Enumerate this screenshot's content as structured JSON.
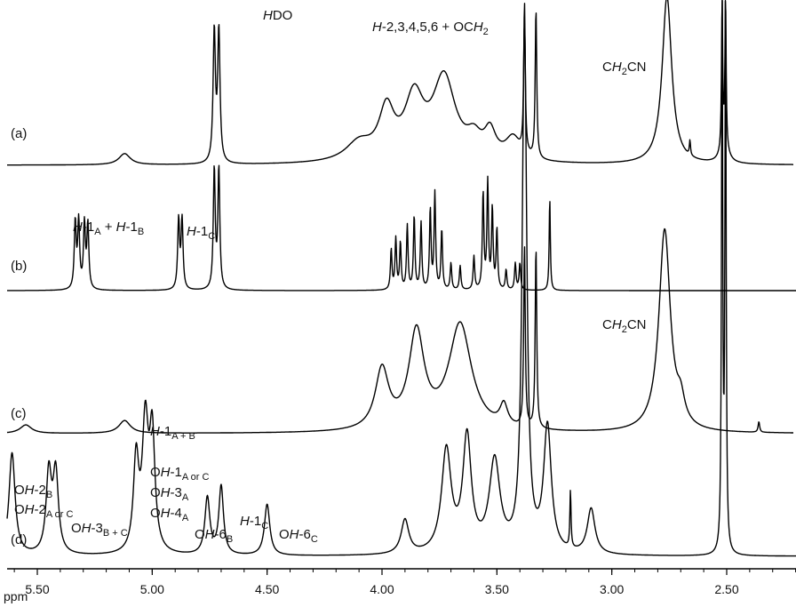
{
  "chart_data": {
    "type": "line",
    "title": "",
    "xlabel": "ppm",
    "ylabel": "",
    "xlim": [
      5.7,
      2.2
    ],
    "x_ticks": [
      "5.50",
      "5.00",
      "4.50",
      "4.00",
      "3.50",
      "3.00",
      "2.50"
    ],
    "x_tick_values": [
      5.5,
      5.0,
      4.5,
      4.0,
      3.5,
      3.0,
      2.5
    ],
    "grid": false,
    "legend": "none",
    "series": [
      {
        "name": "(a)",
        "peaks": [
          {
            "x": 5.12,
            "h": 0.06,
            "w": 0.03
          },
          {
            "x": 4.73,
            "h": 0.7,
            "w": 0.006
          },
          {
            "x": 4.71,
            "h": 0.7,
            "w": 0.006
          },
          {
            "x": 4.1,
            "h": 0.1,
            "w": 0.07
          },
          {
            "x": 3.98,
            "h": 0.26,
            "w": 0.04
          },
          {
            "x": 3.86,
            "h": 0.32,
            "w": 0.05
          },
          {
            "x": 3.73,
            "h": 0.44,
            "w": 0.06
          },
          {
            "x": 3.6,
            "h": 0.1,
            "w": 0.04
          },
          {
            "x": 3.53,
            "h": 0.14,
            "w": 0.03
          },
          {
            "x": 3.43,
            "h": 0.12,
            "w": 0.04
          },
          {
            "x": 3.38,
            "h": 0.8,
            "w": 0.004
          },
          {
            "x": 3.33,
            "h": 0.8,
            "w": 0.004
          },
          {
            "x": 2.76,
            "h": 0.9,
            "w": 0.025
          },
          {
            "x": 2.66,
            "h": 0.08,
            "w": 0.003
          },
          {
            "x": 2.51,
            "h": 0.09,
            "w": 0.02
          },
          {
            "x": 2.52,
            "h": 0.8,
            "w": 0.003
          },
          {
            "x": 2.505,
            "h": 0.8,
            "w": 0.003
          }
        ]
      },
      {
        "name": "(b)",
        "peaks": [
          {
            "x": 5.335,
            "h": 0.5,
            "w": 0.005
          },
          {
            "x": 5.32,
            "h": 0.5,
            "w": 0.005
          },
          {
            "x": 5.295,
            "h": 0.48,
            "w": 0.005
          },
          {
            "x": 5.28,
            "h": 0.48,
            "w": 0.005
          },
          {
            "x": 4.885,
            "h": 0.52,
            "w": 0.005
          },
          {
            "x": 4.87,
            "h": 0.52,
            "w": 0.005
          },
          {
            "x": 4.73,
            "h": 0.9,
            "w": 0.005
          },
          {
            "x": 4.71,
            "h": 0.9,
            "w": 0.005
          },
          {
            "x": 3.96,
            "h": 0.3,
            "w": 0.004
          },
          {
            "x": 3.94,
            "h": 0.38,
            "w": 0.004
          },
          {
            "x": 3.92,
            "h": 0.35,
            "w": 0.004
          },
          {
            "x": 3.89,
            "h": 0.48,
            "w": 0.004
          },
          {
            "x": 3.86,
            "h": 0.55,
            "w": 0.004
          },
          {
            "x": 3.83,
            "h": 0.5,
            "w": 0.004
          },
          {
            "x": 3.79,
            "h": 0.6,
            "w": 0.004
          },
          {
            "x": 3.77,
            "h": 0.72,
            "w": 0.004
          },
          {
            "x": 3.74,
            "h": 0.45,
            "w": 0.004
          },
          {
            "x": 3.7,
            "h": 0.2,
            "w": 0.004
          },
          {
            "x": 3.66,
            "h": 0.18,
            "w": 0.004
          },
          {
            "x": 3.6,
            "h": 0.25,
            "w": 0.004
          },
          {
            "x": 3.56,
            "h": 0.72,
            "w": 0.004
          },
          {
            "x": 3.54,
            "h": 0.8,
            "w": 0.004
          },
          {
            "x": 3.52,
            "h": 0.6,
            "w": 0.004
          },
          {
            "x": 3.5,
            "h": 0.45,
            "w": 0.004
          },
          {
            "x": 3.46,
            "h": 0.15,
            "w": 0.004
          },
          {
            "x": 3.42,
            "h": 0.2,
            "w": 0.004
          },
          {
            "x": 3.4,
            "h": 0.2,
            "w": 0.004
          },
          {
            "x": 3.27,
            "h": 0.7,
            "w": 0.003
          }
        ]
      },
      {
        "name": "(c)",
        "peaks": [
          {
            "x": 5.55,
            "h": 0.04,
            "w": 0.03
          },
          {
            "x": 5.12,
            "h": 0.06,
            "w": 0.03
          },
          {
            "x": 4.0,
            "h": 0.28,
            "w": 0.035
          },
          {
            "x": 3.85,
            "h": 0.45,
            "w": 0.04
          },
          {
            "x": 3.66,
            "h": 0.5,
            "w": 0.06
          },
          {
            "x": 3.47,
            "h": 0.1,
            "w": 0.02
          },
          {
            "x": 3.38,
            "h": 0.85,
            "w": 0.004
          },
          {
            "x": 3.33,
            "h": 0.85,
            "w": 0.004
          },
          {
            "x": 2.77,
            "h": 0.95,
            "w": 0.03
          },
          {
            "x": 2.7,
            "h": 0.1,
            "w": 0.02
          },
          {
            "x": 2.36,
            "h": 0.05,
            "w": 0.004
          }
        ]
      },
      {
        "name": "(d)",
        "peaks": [
          {
            "x": 5.61,
            "h": 0.18,
            "w": 0.016
          },
          {
            "x": 5.45,
            "h": 0.14,
            "w": 0.014
          },
          {
            "x": 5.42,
            "h": 0.14,
            "w": 0.014
          },
          {
            "x": 5.07,
            "h": 0.16,
            "w": 0.014
          },
          {
            "x": 5.03,
            "h": 0.22,
            "w": 0.016
          },
          {
            "x": 5.0,
            "h": 0.2,
            "w": 0.014
          },
          {
            "x": 4.76,
            "h": 0.1,
            "w": 0.013
          },
          {
            "x": 4.7,
            "h": 0.12,
            "w": 0.012
          },
          {
            "x": 4.5,
            "h": 0.09,
            "w": 0.014
          },
          {
            "x": 3.9,
            "h": 0.06,
            "w": 0.02
          },
          {
            "x": 3.72,
            "h": 0.18,
            "w": 0.025
          },
          {
            "x": 3.63,
            "h": 0.2,
            "w": 0.022
          },
          {
            "x": 3.51,
            "h": 0.16,
            "w": 0.028
          },
          {
            "x": 3.38,
            "h": 0.92,
            "w": 0.012
          },
          {
            "x": 3.28,
            "h": 0.22,
            "w": 0.02
          },
          {
            "x": 3.18,
            "h": 0.1,
            "w": 0.003
          },
          {
            "x": 3.09,
            "h": 0.08,
            "w": 0.02
          },
          {
            "x": 2.52,
            "h": 1.0,
            "w": 0.003
          },
          {
            "x": 2.505,
            "h": 1.0,
            "w": 0.003
          }
        ]
      }
    ],
    "annotations": {
      "a_hdo": {
        "italic": "H",
        "plain": "DO"
      },
      "a_hgroup": {
        "italic": "H",
        "plain": "-2,3,4,5,6 + OC",
        "italic2": "H",
        "sub": "2"
      },
      "a_ch2cn": {
        "pre": "C",
        "italic": "H",
        "sub": "2",
        "post": "CN"
      },
      "b_h1ab": {
        "italic": "H",
        "plain": "-1",
        "sub": "A",
        "plus": " + ",
        "italic2": "H",
        "plain2": "-1",
        "sub2": "B"
      },
      "b_h1c": {
        "italic": "H",
        "plain": "-1",
        "sub": "C"
      },
      "c_ch2cn": {
        "pre": "C",
        "italic": "H",
        "sub": "2",
        "post": "CN"
      },
      "d_oh2b": {
        "pre": "O",
        "italic": "H",
        "plain": "-2",
        "sub": "B"
      },
      "d_oh2ac": {
        "pre": "O",
        "italic": "H",
        "plain": "-2",
        "sub": "A or C"
      },
      "d_oh3bc": {
        "pre": "O",
        "italic": "H",
        "plain": "-3",
        "sub": "B + C"
      },
      "d_h1ab": {
        "italic": "H",
        "plain": "-1",
        "sub": "A + B"
      },
      "d_oh1ac": {
        "pre": "O",
        "italic": "H",
        "plain": "-1",
        "sub": "A or C"
      },
      "d_oh3a": {
        "pre": "O",
        "italic": "H",
        "plain": "-3",
        "sub": "A"
      },
      "d_oh4a": {
        "pre": "O",
        "italic": "H",
        "plain": "-4",
        "sub": "A"
      },
      "d_oh6b": {
        "pre": "O",
        "italic": "H",
        "plain": "-6",
        "sub": "B"
      },
      "d_h1c": {
        "italic": "H",
        "plain": "-1",
        "sub": "C"
      },
      "d_oh6c": {
        "pre": "O",
        "italic": "H",
        "plain": "-6",
        "sub": "C"
      }
    }
  }
}
